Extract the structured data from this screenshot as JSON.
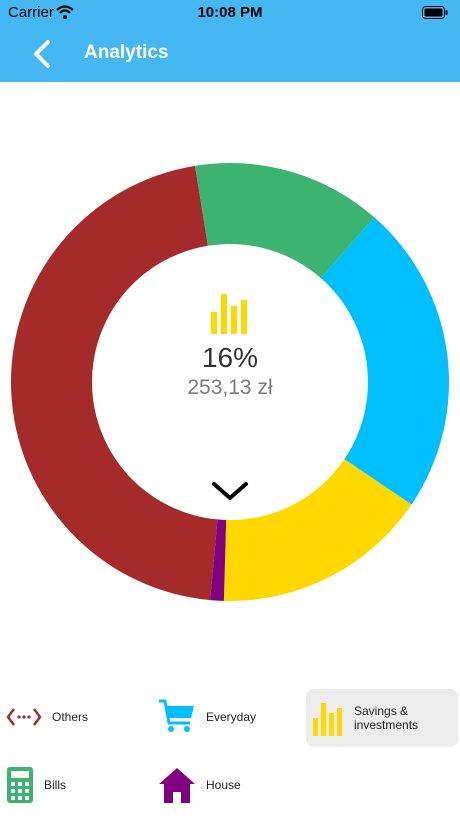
{
  "status_bar": {
    "carrier": "Carrier",
    "time": "10:08 PM"
  },
  "nav": {
    "title": "Analytics",
    "back_icon": "chevron-left-icon",
    "background": "#45b8f3"
  },
  "chart_data": {
    "type": "pie",
    "variant": "donut",
    "categories": [
      "Savings & investments",
      "House",
      "Others",
      "Bills",
      "Everyday"
    ],
    "values": [
      16,
      1,
      46,
      14,
      23
    ],
    "colors": [
      "#ffd800",
      "#800080",
      "#a52a2a",
      "#3cb371",
      "#00bfff"
    ],
    "selected_category": "Savings & investments"
  },
  "center": {
    "percentage": "16%",
    "amount": "253,13 zł",
    "icon": "bar-chart-icon",
    "expand_icon": "chevron-down-icon"
  },
  "legend": [
    {
      "label": "Others",
      "icon": "dots-arrows-icon",
      "color": "#a52a2a",
      "selected": false
    },
    {
      "label": "Everyday",
      "icon": "shopping-cart-icon",
      "color": "#00bfff",
      "selected": false
    },
    {
      "label": "Savings & investments",
      "icon": "bar-chart-icon",
      "color": "#ffd800",
      "selected": true
    },
    {
      "label": "Bills",
      "icon": "calculator-icon",
      "color": "#3cb371",
      "selected": false
    },
    {
      "label": "House",
      "icon": "house-icon",
      "color": "#800080",
      "selected": false
    }
  ]
}
